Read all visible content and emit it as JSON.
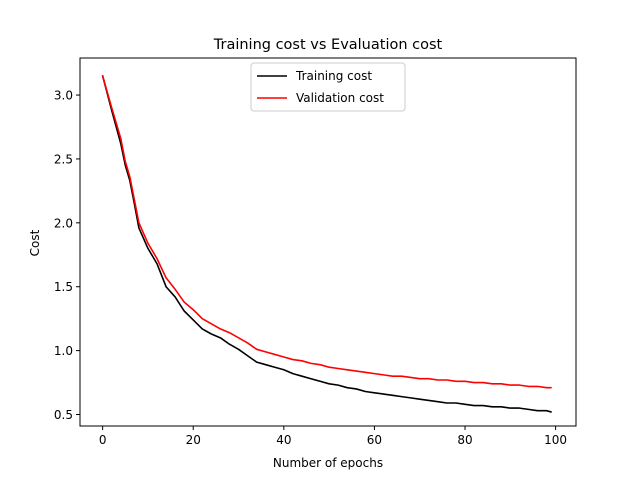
{
  "chart_data": {
    "type": "line",
    "title": "Training cost vs Evaluation cost",
    "xlabel": "Number of epochs",
    "ylabel": "Cost",
    "xlim": [
      -5,
      104.5
    ],
    "ylim": [
      0.41,
      3.29
    ],
    "xticks": [
      0,
      20,
      40,
      60,
      80,
      100
    ],
    "xtick_labels": [
      "0",
      "20",
      "40",
      "60",
      "80",
      "100"
    ],
    "yticks": [
      0.5,
      1.0,
      1.5,
      2.0,
      2.5,
      3.0
    ],
    "ytick_labels": [
      "0.5",
      "1.0",
      "1.5",
      "2.0",
      "2.5",
      "3.0"
    ],
    "grid": false,
    "legend_position": "top-center",
    "series": [
      {
        "name": "Training cost",
        "color": "#000000",
        "x": [
          0,
          2,
          4,
          5,
          6,
          7,
          8,
          9,
          10,
          12,
          14,
          16,
          18,
          20,
          22,
          24,
          26,
          28,
          30,
          32,
          34,
          36,
          38,
          40,
          42,
          44,
          46,
          48,
          50,
          52,
          54,
          56,
          58,
          60,
          62,
          64,
          66,
          68,
          70,
          72,
          74,
          76,
          78,
          80,
          82,
          84,
          86,
          88,
          90,
          92,
          94,
          96,
          98,
          99
        ],
        "y": [
          3.15,
          2.88,
          2.62,
          2.45,
          2.33,
          2.15,
          1.96,
          1.88,
          1.8,
          1.68,
          1.5,
          1.42,
          1.31,
          1.24,
          1.17,
          1.13,
          1.1,
          1.05,
          1.01,
          0.96,
          0.91,
          0.89,
          0.87,
          0.85,
          0.82,
          0.8,
          0.78,
          0.76,
          0.74,
          0.73,
          0.71,
          0.7,
          0.68,
          0.67,
          0.66,
          0.65,
          0.64,
          0.63,
          0.62,
          0.61,
          0.6,
          0.59,
          0.59,
          0.58,
          0.57,
          0.57,
          0.56,
          0.56,
          0.55,
          0.55,
          0.54,
          0.53,
          0.53,
          0.52
        ]
      },
      {
        "name": "Validation cost",
        "color": "#ff0000",
        "x": [
          0,
          2,
          4,
          5,
          6,
          7,
          8,
          9,
          10,
          12,
          14,
          16,
          18,
          20,
          22,
          24,
          26,
          28,
          30,
          32,
          34,
          36,
          38,
          40,
          42,
          44,
          46,
          48,
          50,
          52,
          54,
          56,
          58,
          60,
          62,
          64,
          66,
          68,
          70,
          72,
          74,
          76,
          78,
          80,
          82,
          84,
          86,
          88,
          90,
          92,
          94,
          96,
          98,
          99
        ],
        "y": [
          3.15,
          2.9,
          2.66,
          2.48,
          2.36,
          2.18,
          2.0,
          1.92,
          1.84,
          1.72,
          1.57,
          1.48,
          1.38,
          1.32,
          1.25,
          1.21,
          1.17,
          1.14,
          1.1,
          1.06,
          1.01,
          0.99,
          0.97,
          0.95,
          0.93,
          0.92,
          0.9,
          0.89,
          0.87,
          0.86,
          0.85,
          0.84,
          0.83,
          0.82,
          0.81,
          0.8,
          0.8,
          0.79,
          0.78,
          0.78,
          0.77,
          0.77,
          0.76,
          0.76,
          0.75,
          0.75,
          0.74,
          0.74,
          0.73,
          0.73,
          0.72,
          0.72,
          0.71,
          0.71
        ]
      }
    ]
  }
}
